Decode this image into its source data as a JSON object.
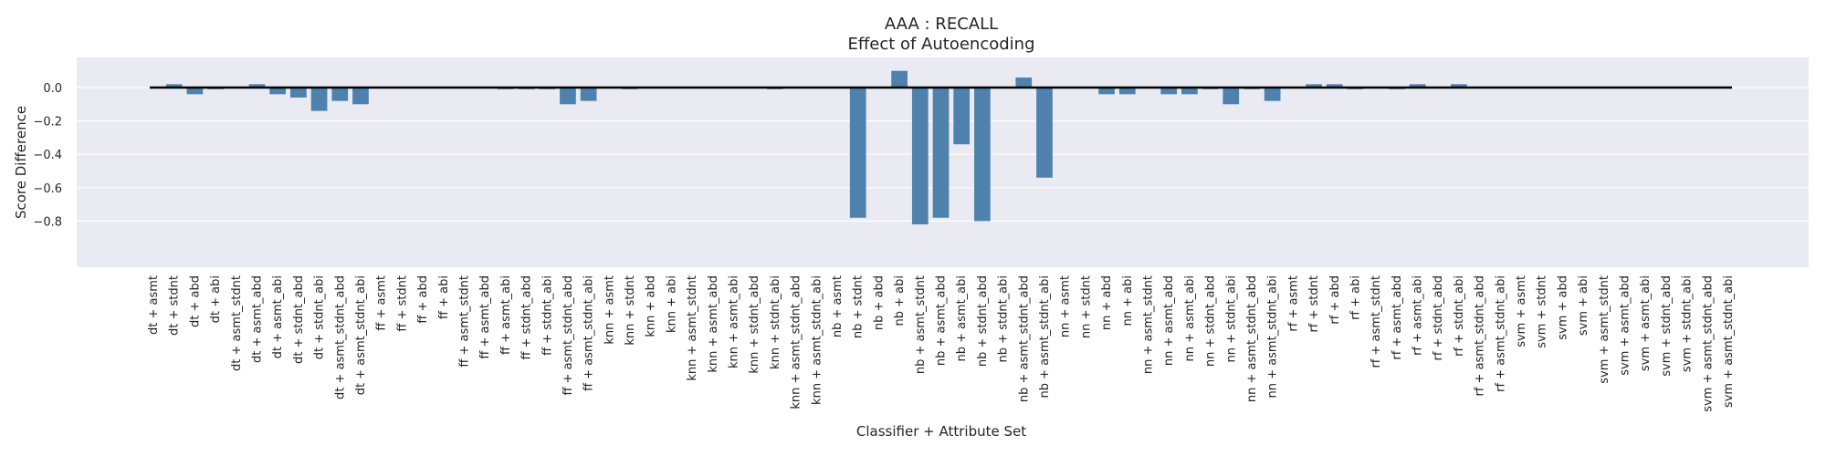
{
  "chart_data": {
    "type": "bar",
    "title": "AAA : RECALL",
    "subtitle": "Effect of Autoencoding",
    "xlabel": "Classifier + Attribute Set",
    "ylabel": "Score Difference",
    "ylim": [
      -0.86,
      0.15
    ],
    "yticks": [
      0.0,
      -0.2,
      -0.4,
      -0.6,
      -0.8
    ],
    "ytick_labels": [
      "0.0",
      "−0.2",
      "−0.4",
      "−0.6",
      "−0.8"
    ],
    "grid": true,
    "bar_color": "#4f81ad",
    "zero_line_color": "#000000",
    "background_color": "#eaeaf2",
    "categories": [
      "dt + asmt",
      "dt + stdnt",
      "dt + abd",
      "dt + abi",
      "dt + asmt_stdnt",
      "dt + asmt_abd",
      "dt + asmt_abi",
      "dt + stdnt_abd",
      "dt + stdnt_abi",
      "dt + asmt_stdnt_abd",
      "dt + asmt_stdnt_abi",
      "ff + asmt",
      "ff + stdnt",
      "ff + abd",
      "ff + abi",
      "ff + asmt_stdnt",
      "ff + asmt_abd",
      "ff + asmt_abi",
      "ff + stdnt_abd",
      "ff + stdnt_abi",
      "ff + asmt_stdnt_abd",
      "ff + asmt_stdnt_abi",
      "knn + asmt",
      "knn + stdnt",
      "knn + abd",
      "knn + abi",
      "knn + asmt_stdnt",
      "knn + asmt_abd",
      "knn + asmt_abi",
      "knn + stdnt_abd",
      "knn + stdnt_abi",
      "knn + asmt_stdnt_abd",
      "knn + asmt_stdnt_abi",
      "nb + asmt",
      "nb + stdnt",
      "nb + abd",
      "nb + abi",
      "nb + asmt_stdnt",
      "nb + asmt_abd",
      "nb + asmt_abi",
      "nb + stdnt_abd",
      "nb + stdnt_abi",
      "nb + asmt_stdnt_abd",
      "nb + asmt_stdnt_abi",
      "nn + asmt",
      "nn + stdnt",
      "nn + abd",
      "nn + abi",
      "nn + asmt_stdnt",
      "nn + asmt_abd",
      "nn + asmt_abi",
      "nn + stdnt_abd",
      "nn + stdnt_abi",
      "nn + asmt_stdnt_abd",
      "nn + asmt_stdnt_abi",
      "rf + asmt",
      "rf + stdnt",
      "rf + abd",
      "rf + abi",
      "rf + asmt_stdnt",
      "rf + asmt_abd",
      "rf + asmt_abi",
      "rf + stdnt_abd",
      "rf + stdnt_abi",
      "rf + asmt_stdnt_abd",
      "rf + asmt_stdnt_abi",
      "svm + asmt",
      "svm + stdnt",
      "svm + abd",
      "svm + abi",
      "svm + asmt_stdnt",
      "svm + asmt_abd",
      "svm + asmt_abi",
      "svm + stdnt_abd",
      "svm + stdnt_abi",
      "svm + asmt_stdnt_abd",
      "svm + asmt_stdnt_abi"
    ],
    "values": [
      0.0,
      0.02,
      -0.04,
      -0.01,
      0.0,
      0.02,
      -0.04,
      -0.06,
      -0.14,
      -0.08,
      -0.1,
      0.0,
      0.0,
      0.0,
      0.0,
      0.0,
      0.0,
      -0.01,
      -0.01,
      -0.01,
      -0.1,
      -0.08,
      0.0,
      -0.01,
      0.0,
      0.0,
      0.0,
      0.0,
      0.0,
      0.0,
      -0.01,
      0.0,
      0.0,
      0.0,
      -0.78,
      0.0,
      0.1,
      -0.82,
      -0.78,
      -0.34,
      -0.8,
      0.0,
      0.06,
      -0.54,
      0.0,
      0.0,
      -0.04,
      -0.04,
      0.0,
      -0.04,
      -0.04,
      -0.01,
      -0.1,
      -0.01,
      -0.08,
      0.0,
      0.02,
      0.02,
      -0.01,
      0.0,
      -0.01,
      0.02,
      0.0,
      0.02,
      0.0,
      0.0,
      0.0,
      0.0,
      0.0,
      0.0,
      0.0,
      0.0,
      0.0,
      0.0,
      0.0,
      0.0,
      0.0
    ]
  }
}
